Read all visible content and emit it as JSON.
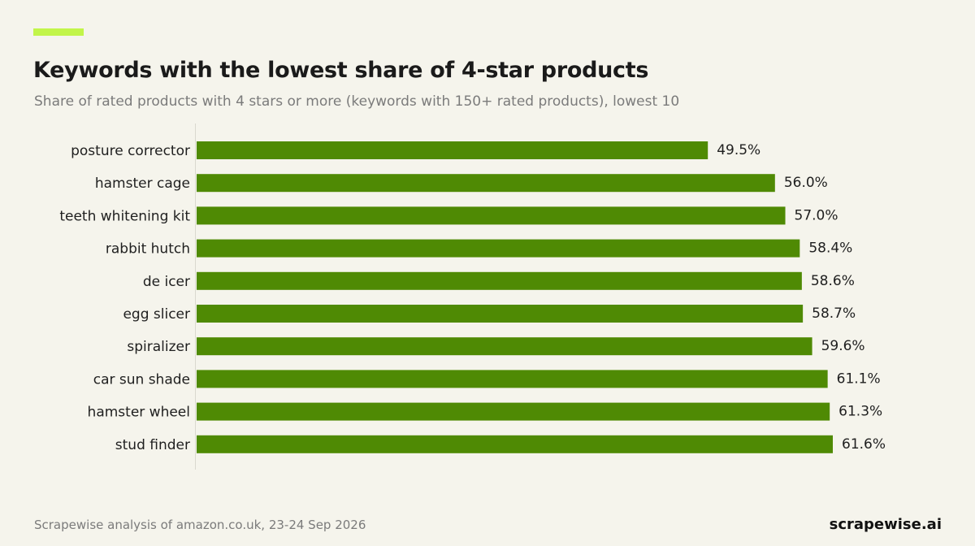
{
  "header": {
    "title": "Keywords with the lowest share of 4-star products",
    "subtitle": "Share of rated products with 4 stars or more (keywords with 150+ rated products), lowest 10"
  },
  "footer": {
    "source": "Scrapewise analysis of amazon.co.uk, 23-24 Sep 2026",
    "brand": "scrapewise.ai"
  },
  "colors": {
    "accent": "#c2f54a",
    "bar": "#4f8a04",
    "background": "#f5f4ec"
  },
  "chart_data": {
    "type": "bar",
    "orientation": "horizontal",
    "categories": [
      "posture corrector",
      "hamster cage",
      "teeth whitening kit",
      "rabbit hutch",
      "de icer",
      "egg slicer",
      "spiralizer",
      "car sun shade",
      "hamster wheel",
      "stud finder"
    ],
    "values": [
      49.5,
      56.0,
      57.0,
      58.4,
      58.6,
      58.7,
      59.6,
      61.1,
      61.3,
      61.6
    ],
    "value_labels": [
      "49.5%",
      "56.0%",
      "57.0%",
      "58.4%",
      "58.6%",
      "58.7%",
      "59.6%",
      "61.1%",
      "61.3%",
      "61.6%"
    ],
    "title": "Keywords with the lowest share of 4-star products",
    "subtitle": "Share of rated products with 4 stars or more (keywords with 150+ rated products), lowest 10",
    "xlabel": "",
    "ylabel": "",
    "xlim": [
      0,
      61.6
    ],
    "grid": false,
    "legend": "none"
  }
}
